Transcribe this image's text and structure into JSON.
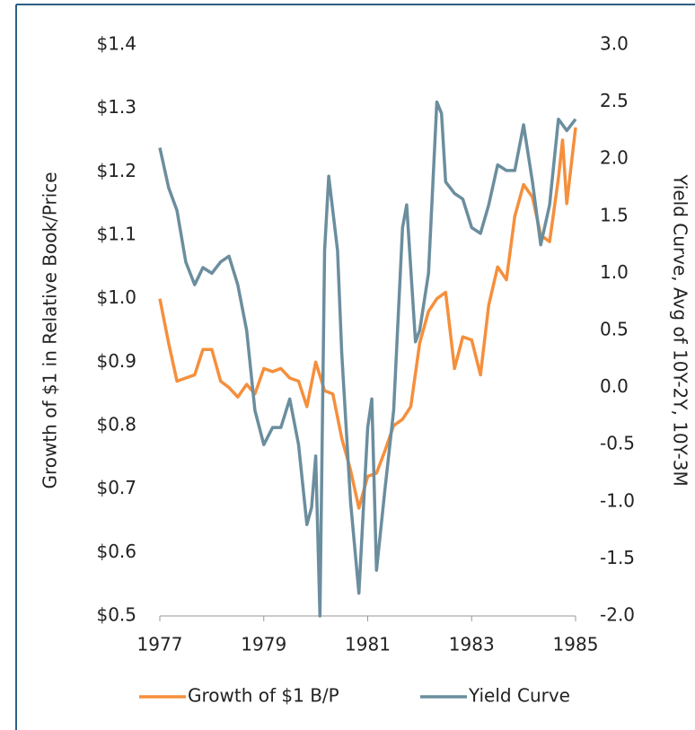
{
  "chart_data": {
    "type": "line",
    "y_label": "Growth of $1 in Relative Book/Price",
    "y2_label": "Yield Curve, Avg  of 10Y-2Y, 10Y-3M",
    "xlim": [
      1977,
      1985
    ],
    "xticks": [
      1977,
      1979,
      1981,
      1983,
      1985
    ],
    "ylim": [
      0.5,
      1.4
    ],
    "yticks": [
      {
        "value": 0.5,
        "label": "$0.5"
      },
      {
        "value": 0.6,
        "label": "$0.6"
      },
      {
        "value": 0.7,
        "label": "$0.7"
      },
      {
        "value": 0.8,
        "label": "$0.8"
      },
      {
        "value": 0.9,
        "label": "$0.9"
      },
      {
        "value": 1.0,
        "label": "$1.0"
      },
      {
        "value": 1.1,
        "label": "$1.1"
      },
      {
        "value": 1.2,
        "label": "$1.2"
      },
      {
        "value": 1.3,
        "label": "$1.3"
      },
      {
        "value": 1.4,
        "label": "$1.4"
      }
    ],
    "y2lim": [
      -2,
      3
    ],
    "y2ticks": [
      {
        "value": -2,
        "label": "-2.0"
      },
      {
        "value": -1.5,
        "label": "-1.5"
      },
      {
        "value": -1,
        "label": "-1.0"
      },
      {
        "value": -0.5,
        "label": "-0.5"
      },
      {
        "value": 0,
        "label": "0.0"
      },
      {
        "value": 0.5,
        "label": "0.5"
      },
      {
        "value": 1,
        "label": "1.0"
      },
      {
        "value": 1.5,
        "label": "1.5"
      },
      {
        "value": 2,
        "label": "2.0"
      },
      {
        "value": 2.5,
        "label": "2.5"
      },
      {
        "value": 3,
        "label": "3.0"
      }
    ],
    "series": [
      {
        "name": "Growth of $1 B/P",
        "color": "#f58f3c",
        "x": [
          1977,
          1977.17,
          1977.33,
          1977.5,
          1977.67,
          1977.83,
          1978,
          1978.17,
          1978.33,
          1978.5,
          1978.67,
          1978.83,
          1979,
          1979.17,
          1979.33,
          1979.5,
          1979.67,
          1979.83,
          1980,
          1980.17,
          1980.33,
          1980.5,
          1980.67,
          1980.83,
          1981,
          1981.17,
          1981.33,
          1981.5,
          1981.67,
          1981.83,
          1982,
          1982.17,
          1982.33,
          1982.5,
          1982.67,
          1982.83,
          1983,
          1983.17,
          1983.33,
          1983.5,
          1983.67,
          1983.83,
          1984,
          1984.17,
          1984.33,
          1984.5,
          1984.67,
          1984.75,
          1984.83,
          1985
        ],
        "values": [
          1.0,
          0.93,
          0.87,
          0.875,
          0.88,
          0.92,
          0.92,
          0.87,
          0.86,
          0.845,
          0.865,
          0.85,
          0.89,
          0.885,
          0.89,
          0.875,
          0.87,
          0.83,
          0.9,
          0.855,
          0.85,
          0.78,
          0.73,
          0.67,
          0.72,
          0.725,
          0.76,
          0.8,
          0.81,
          0.83,
          0.93,
          0.98,
          1.0,
          1.01,
          0.89,
          0.94,
          0.935,
          0.88,
          0.99,
          1.05,
          1.03,
          1.13,
          1.18,
          1.16,
          1.1,
          1.09,
          1.19,
          1.25,
          1.15,
          1.27
        ]
      },
      {
        "name": "Yield Curve",
        "color": "#6b8e9e",
        "axis": "y2",
        "x": [
          1977,
          1977.17,
          1977.33,
          1977.5,
          1977.67,
          1977.83,
          1978,
          1978.17,
          1978.33,
          1978.5,
          1978.67,
          1978.83,
          1979,
          1979.17,
          1979.33,
          1979.5,
          1979.67,
          1979.83,
          1979.92,
          1980,
          1980.08,
          1980.17,
          1980.25,
          1980.42,
          1980.5,
          1980.67,
          1980.83,
          1981,
          1981.08,
          1981.17,
          1981.33,
          1981.5,
          1981.67,
          1981.75,
          1981.92,
          1982,
          1982.17,
          1982.33,
          1982.42,
          1982.5,
          1982.67,
          1982.83,
          1983,
          1983.17,
          1983.33,
          1983.5,
          1983.67,
          1983.83,
          1984,
          1984.17,
          1984.33,
          1984.5,
          1984.67,
          1984.83,
          1985
        ],
        "values": [
          2.1,
          1.75,
          1.55,
          1.1,
          0.9,
          1.05,
          1.0,
          1.1,
          1.15,
          0.9,
          0.5,
          -0.2,
          -0.5,
          -0.35,
          -0.35,
          -0.1,
          -0.5,
          -1.2,
          -1.05,
          -0.6,
          -2.0,
          1.2,
          1.85,
          1.2,
          0.3,
          -1.0,
          -1.8,
          -0.35,
          -0.1,
          -1.6,
          -0.9,
          -0.2,
          1.4,
          1.6,
          0.4,
          0.5,
          1.0,
          2.5,
          2.4,
          1.8,
          1.7,
          1.65,
          1.4,
          1.35,
          1.6,
          1.95,
          1.9,
          1.9,
          2.3,
          1.8,
          1.25,
          1.6,
          2.35,
          2.25,
          2.35
        ]
      }
    ]
  }
}
